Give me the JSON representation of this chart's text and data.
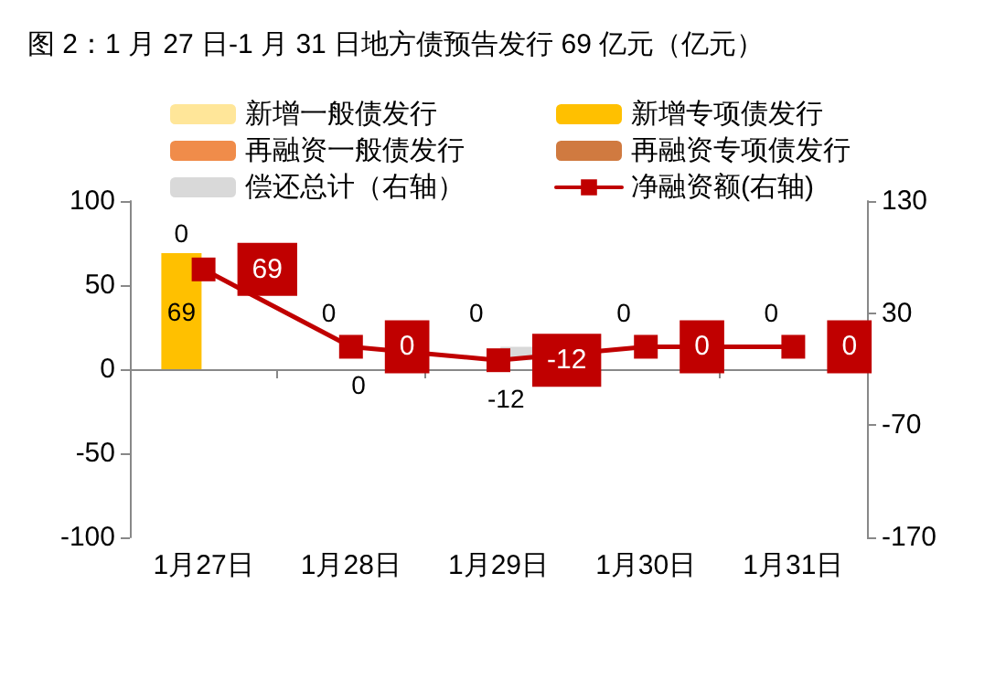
{
  "chart_data": {
    "type": "bar",
    "title": "图 2：1 月 27 日-1 月 31 日地方债预告发行 69 亿元（亿元）",
    "categories": [
      "1月27日",
      "1月28日",
      "1月29日",
      "1月30日",
      "1月31日"
    ],
    "stacked": true,
    "series": [
      {
        "name": "新增一般债发行",
        "color": "#ffe699",
        "values": [
          0,
          0,
          0,
          0,
          0
        ]
      },
      {
        "name": "新增专项债发行",
        "color": "#ffc000",
        "values": [
          69,
          0,
          0,
          0,
          0
        ],
        "value_labels": [
          "69",
          null,
          null,
          null,
          null
        ]
      },
      {
        "name": "再融资一般债发行",
        "color": "#f08c4a",
        "values": [
          0,
          0,
          0,
          0,
          0
        ]
      },
      {
        "name": "再融资专项债发行",
        "color": "#d07a40",
        "values": [
          0,
          0,
          0,
          0,
          0
        ],
        "value_labels": [
          "0",
          "0",
          "0",
          "0",
          "0"
        ]
      },
      {
        "name": "偿还总计（右轴）",
        "color": "#d9d9d9",
        "axis": "y2",
        "values": [
          0,
          0,
          -12,
          0,
          0
        ],
        "value_labels": [
          null,
          "0",
          "-12",
          null,
          null
        ]
      },
      {
        "name": "净融资额(右轴)",
        "type": "line",
        "color": "#c00000",
        "axis": "y2",
        "values": [
          69,
          0,
          -12,
          0,
          0
        ],
        "value_labels": [
          "69",
          "0",
          "-12",
          "0",
          "0"
        ]
      }
    ],
    "marker": "square",
    "ylim": [
      -100,
      100
    ],
    "yticks": [
      -100,
      -50,
      0,
      50,
      100
    ],
    "y2lim": [
      -170,
      130
    ],
    "y2ticks": [
      -170,
      -70,
      30,
      130
    ],
    "legend": "top"
  }
}
